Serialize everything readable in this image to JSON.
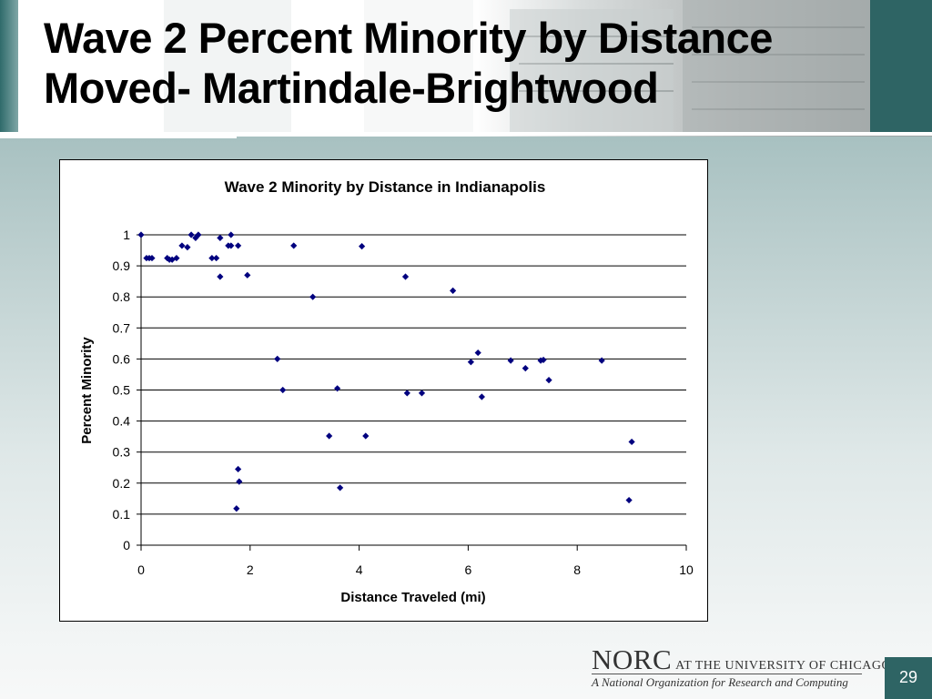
{
  "slide": {
    "title_line1": "Wave 2 Percent Minority by Distance",
    "title_line2": "Moved- Martindale-Brightwood",
    "page_number": "29"
  },
  "logo": {
    "norc": "NORC",
    "rest": "AT THE UNIVERSITY OF CHICAGO",
    "tagline": "A National Organization for Research and Computing"
  },
  "colors": {
    "marker": "#00007f",
    "teal": "#2e6464"
  },
  "chart_data": {
    "type": "scatter",
    "title": "Wave 2 Minority by Distance in Indianapolis",
    "xlabel": "Distance Traveled (mi)",
    "ylabel": "Percent Minority",
    "xlim": [
      0,
      10
    ],
    "ylim": [
      0,
      1
    ],
    "xticks": [
      "0",
      "2",
      "4",
      "6",
      "8",
      "10"
    ],
    "yticks": [
      "0",
      "0.1",
      "0.2",
      "0.3",
      "0.4",
      "0.5",
      "0.6",
      "0.7",
      "0.8",
      "0.9",
      "1"
    ],
    "grid": "horizontal",
    "marker": "diamond",
    "points": [
      [
        0.0,
        1.0
      ],
      [
        0.1,
        0.925
      ],
      [
        0.15,
        0.925
      ],
      [
        0.2,
        0.925
      ],
      [
        0.48,
        0.925
      ],
      [
        0.52,
        0.92
      ],
      [
        0.57,
        0.92
      ],
      [
        0.65,
        0.925
      ],
      [
        0.75,
        0.965
      ],
      [
        0.85,
        0.96
      ],
      [
        0.92,
        1.0
      ],
      [
        1.0,
        0.99
      ],
      [
        1.05,
        1.0
      ],
      [
        1.3,
        0.925
      ],
      [
        1.38,
        0.925
      ],
      [
        1.45,
        0.99
      ],
      [
        1.45,
        0.865
      ],
      [
        1.6,
        0.965
      ],
      [
        1.65,
        0.965
      ],
      [
        1.65,
        1.0
      ],
      [
        1.78,
        0.965
      ],
      [
        1.95,
        0.87
      ],
      [
        1.78,
        0.245
      ],
      [
        1.8,
        0.205
      ],
      [
        1.75,
        0.118
      ],
      [
        2.5,
        0.6
      ],
      [
        2.6,
        0.5
      ],
      [
        2.8,
        0.965
      ],
      [
        3.15,
        0.8
      ],
      [
        3.45,
        0.352
      ],
      [
        3.6,
        0.505
      ],
      [
        3.65,
        0.185
      ],
      [
        4.05,
        0.963
      ],
      [
        4.12,
        0.352
      ],
      [
        4.85,
        0.865
      ],
      [
        4.88,
        0.49
      ],
      [
        5.15,
        0.49
      ],
      [
        5.72,
        0.82
      ],
      [
        6.05,
        0.59
      ],
      [
        6.18,
        0.62
      ],
      [
        6.25,
        0.478
      ],
      [
        6.78,
        0.595
      ],
      [
        7.05,
        0.57
      ],
      [
        7.33,
        0.595
      ],
      [
        7.38,
        0.597
      ],
      [
        7.48,
        0.532
      ],
      [
        8.45,
        0.595
      ],
      [
        8.95,
        0.145
      ],
      [
        9.0,
        0.333
      ]
    ]
  }
}
